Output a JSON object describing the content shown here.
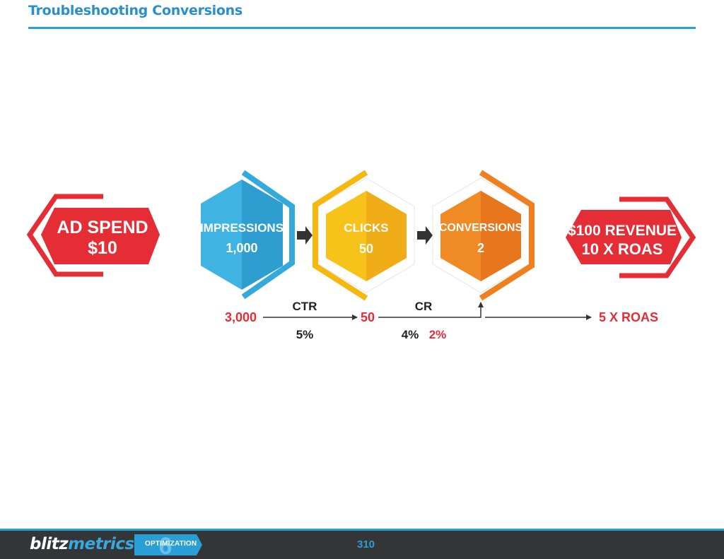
{
  "header": {
    "title": "Troubleshooting Conversions"
  },
  "funnel": {
    "ad_spend": {
      "line1": "AD SPEND",
      "line2": "$10"
    },
    "impressions": {
      "label": "IMPRESSIONS",
      "value": "1,000"
    },
    "clicks": {
      "label": "CLICKS",
      "value": "50"
    },
    "conversions": {
      "label": "CONVERSIONS",
      "value": "2"
    },
    "revenue": {
      "line1": "$100 REVENUE",
      "line2": "10 X ROAS"
    }
  },
  "scenario": {
    "impressions_value": "3,000",
    "ctr_label": "CTR",
    "ctr_value": "5%",
    "clicks_value": "50",
    "cr_label": "CR",
    "cr_value": "4%",
    "cr_value_alt": "2%",
    "result": "5 X ROAS"
  },
  "footer": {
    "brand_part1": "blitz",
    "brand_part2": "metrics",
    "badge_label": "OPTIMIZATION",
    "badge_number": "6",
    "page_number": "310"
  },
  "colors": {
    "title": "#2a8fc8",
    "rule": "#2a9fd6",
    "red": "#e42d35",
    "blue": "#34aadc",
    "yellow": "#f5b80f",
    "orange": "#f07f1e",
    "footer_bg": "#333537"
  }
}
